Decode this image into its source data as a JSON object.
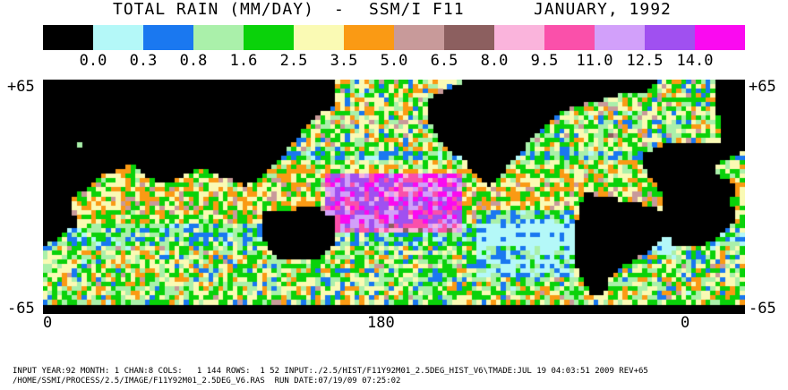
{
  "title": {
    "left": "TOTAL RAIN (MM/DAY)",
    "sep": "-",
    "sensor": "SSM/I F11",
    "date": "JANUARY, 1992"
  },
  "legend": {
    "colors": [
      "#000000",
      "#b4f8f8",
      "#1a78f0",
      "#aaf0aa",
      "#0ad20a",
      "#fafab4",
      "#fa9a14",
      "#c89a9a",
      "#8c5f5f",
      "#fab4dc",
      "#fa50aa",
      "#d2a0fa",
      "#a050f0",
      "#fa0af0"
    ],
    "labels": [
      "0.0",
      "0.3",
      "0.8",
      "1.6",
      "2.5",
      "3.5",
      "5.0",
      "6.5",
      "8.0",
      "9.5",
      "11.0",
      "12.5",
      "14.0"
    ]
  },
  "axes": {
    "left_top": "+65",
    "left_bottom": "-65",
    "right_top": "+65",
    "right_bottom": "-65",
    "x_labels": [
      "0",
      "180",
      "0"
    ]
  },
  "footer": {
    "line1": "INPUT YEAR:92 MONTH: 1 CHAN:8 COLS:   1 144 ROWS:  1 52 INPUT:./2.5/HIST/F11Y92M01_2.5DEG_HIST_V6\\TMADE:JUL 19 04:03:51 2009 REV+65",
    "line2": "/HOME/SSMI/PROCESS/2.5/IMAGE/F11Y92M01_2.5DEG_V6.RAS  RUN DATE:07/19/09 07:25:02"
  },
  "grid": {
    "cols": 144,
    "rows": 52,
    "lat_range": [
      65,
      -65
    ],
    "lon_range": [
      0,
      360
    ]
  }
}
